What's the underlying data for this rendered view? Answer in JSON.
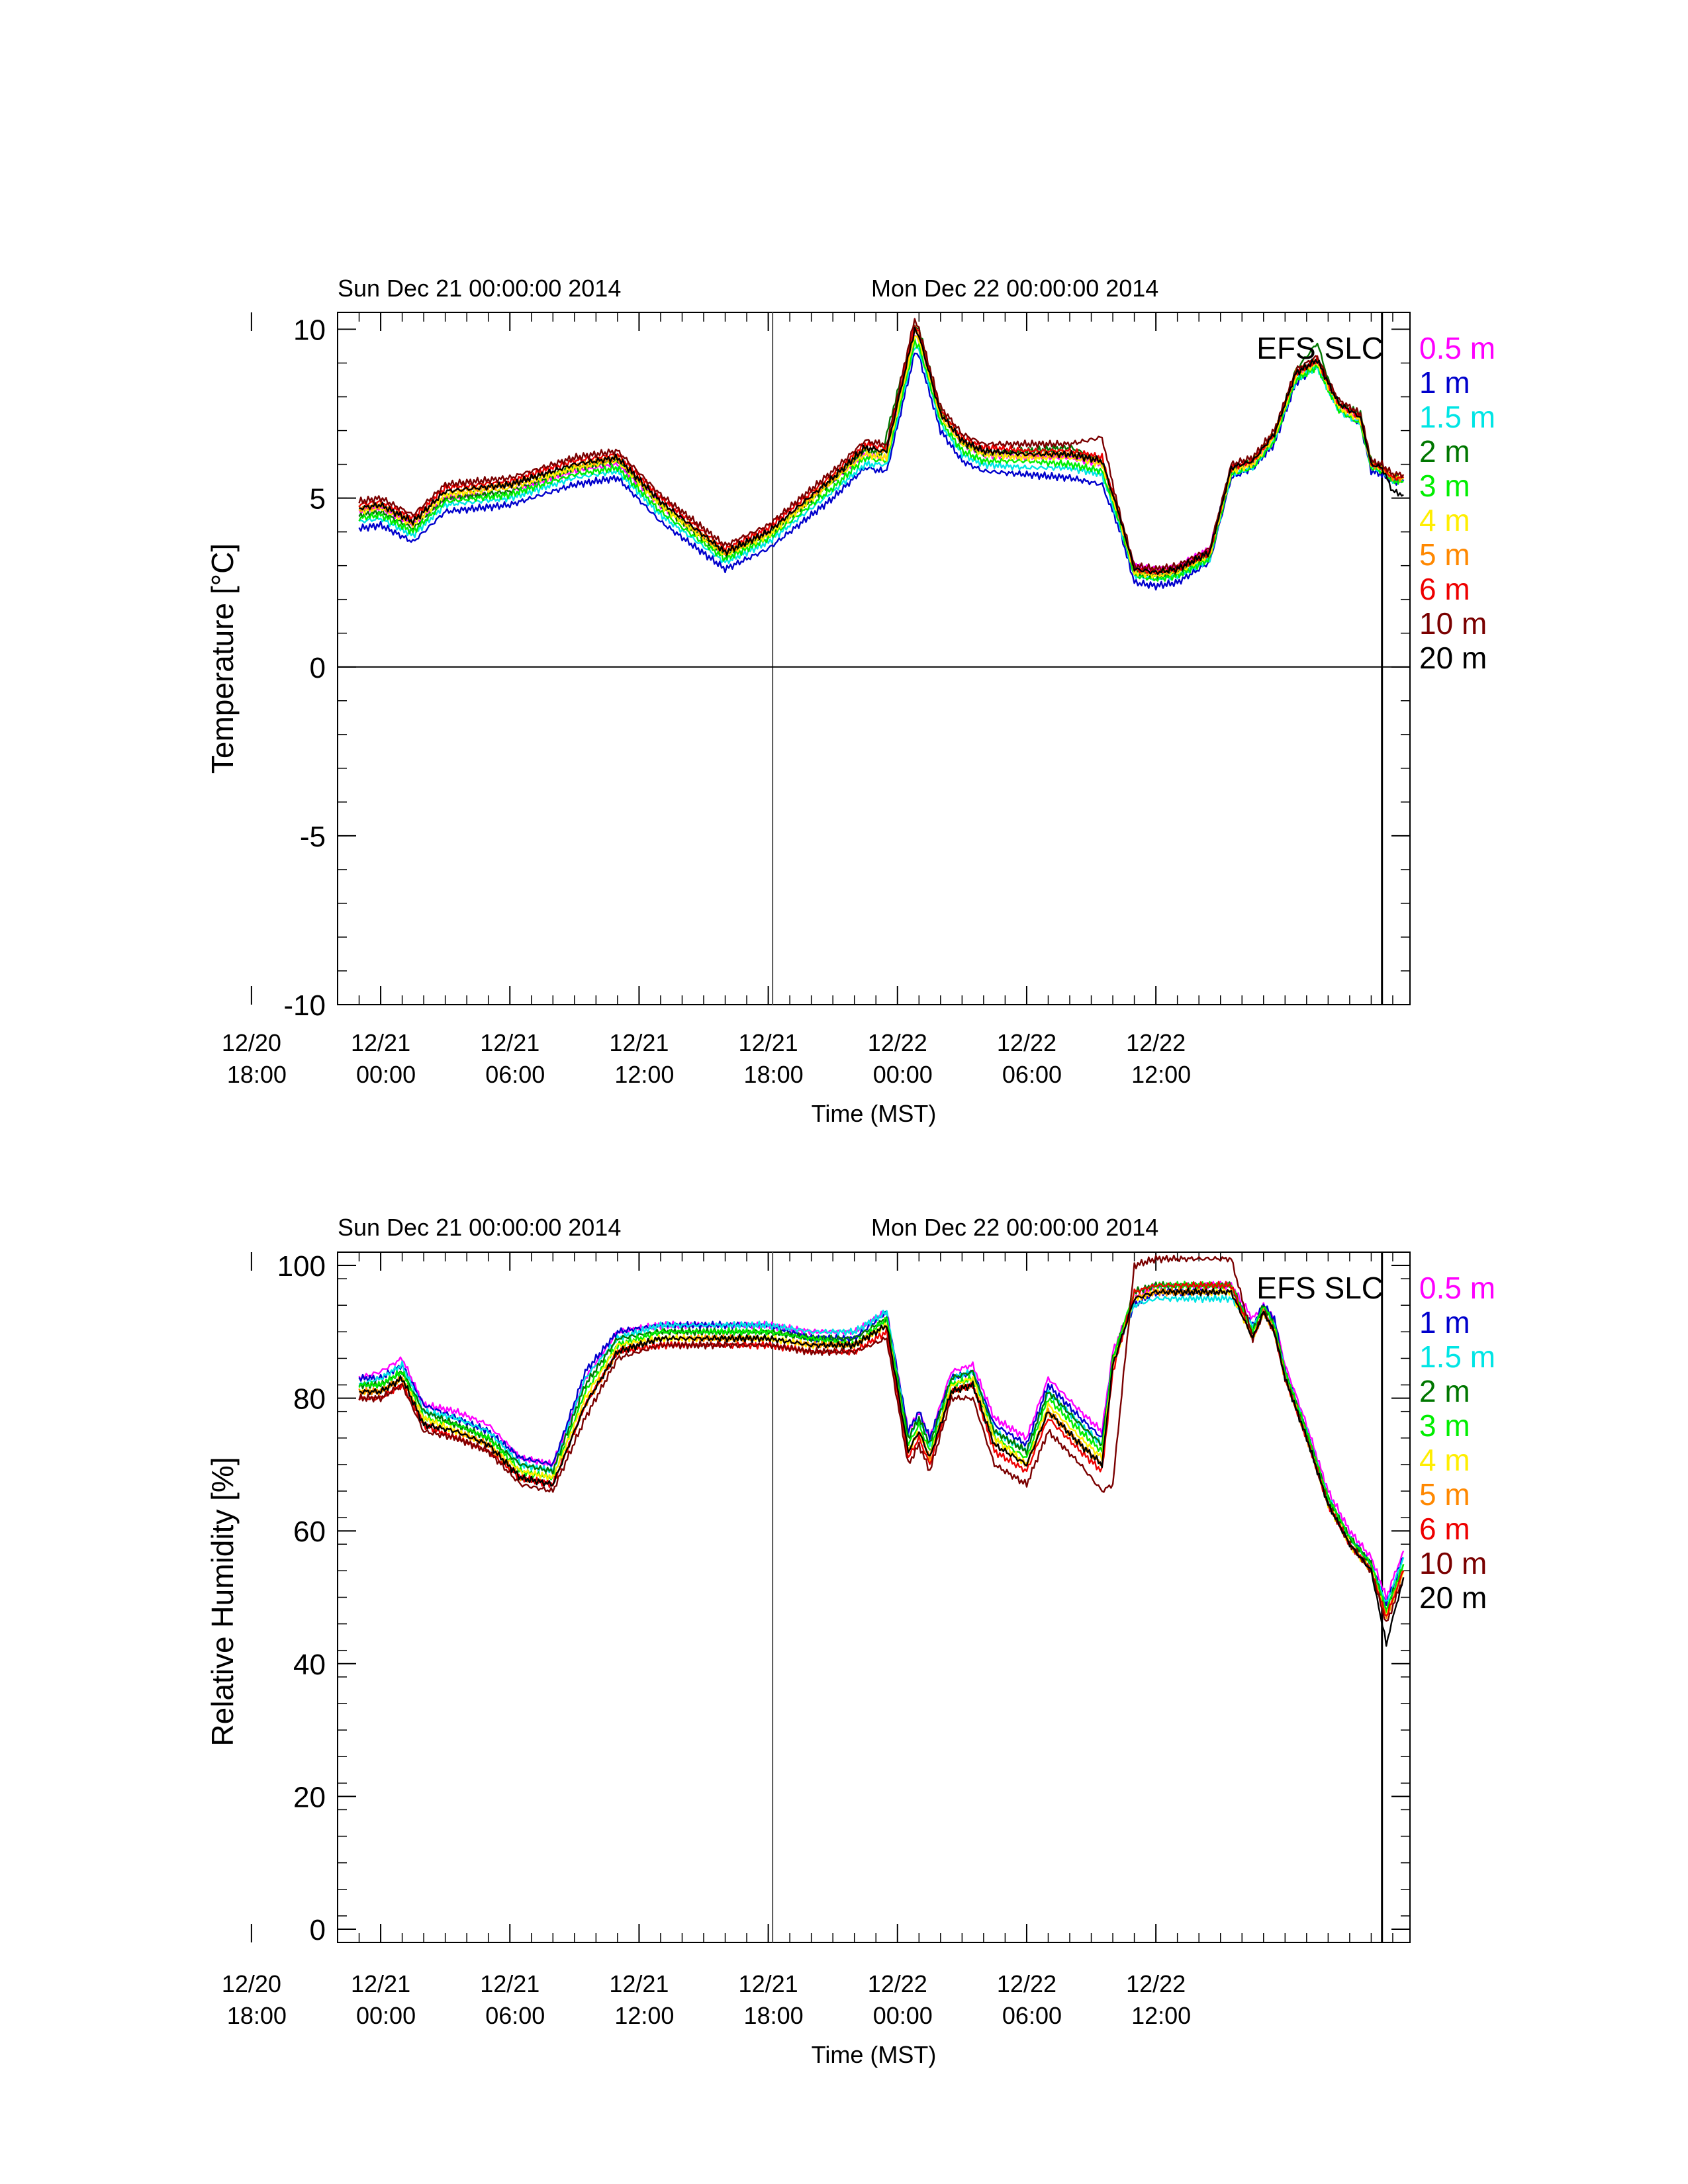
{
  "chart_data": [
    {
      "type": "line",
      "site_label": "EFS SLC",
      "ylabel": "Temperature [°C]",
      "xlabel": "Time (MST)",
      "ylim": [
        -10,
        10.5
      ],
      "yticks": [
        -10,
        -5,
        0,
        5,
        10
      ],
      "reference_line_y": 0,
      "date_labels": [
        "Sun Dec 21 00:00:00 2014",
        "Mon Dec 22 00:00:00 2014"
      ],
      "xticks": [
        {
          "top": "12/20",
          "bottom": "18:00"
        },
        {
          "top": "12/21",
          "bottom": "00:00"
        },
        {
          "top": "12/21",
          "bottom": "06:00"
        },
        {
          "top": "12/21",
          "bottom": "12:00"
        },
        {
          "top": "12/21",
          "bottom": "18:00"
        },
        {
          "top": "12/22",
          "bottom": "00:00"
        },
        {
          "top": "12/22",
          "bottom": "06:00"
        },
        {
          "top": "12/22",
          "bottom": "12:00"
        }
      ],
      "x_hours": [
        -1,
        0,
        1.5,
        3,
        6,
        9,
        11,
        13,
        16,
        18,
        21,
        22.5,
        23.3,
        23.5,
        24.8,
        25,
        26,
        27,
        28,
        30,
        32,
        33.5,
        34.3,
        35,
        36,
        37,
        38.5,
        39.5,
        40.5,
        41.5,
        42.5,
        43.5,
        44,
        44.5,
        45.5,
        46,
        46.5,
        47,
        47.5
      ],
      "series": [
        {
          "name": "0.5 m",
          "color": "#ff00ff",
          "values": [
            4.6,
            4.7,
            4.2,
            5.0,
            5.2,
            5.8,
            6.0,
            4.8,
            3.4,
            4.0,
            5.5,
            6.3,
            6.2,
            6.2,
            9.8,
            9.7,
            7.5,
            6.6,
            6.3,
            6.2,
            6.2,
            6.0,
            4.4,
            3.0,
            2.9,
            3.0,
            3.5,
            5.8,
            6.0,
            6.8,
            8.6,
            9.0,
            8.3,
            7.7,
            7.3,
            6.0,
            5.9,
            5.6,
            5.6
          ]
        },
        {
          "name": "1 m",
          "color": "#0000cc",
          "values": [
            4.1,
            4.2,
            3.7,
            4.6,
            4.8,
            5.4,
            5.6,
            4.3,
            2.9,
            3.5,
            5.0,
            5.9,
            5.8,
            5.8,
            9.3,
            9.2,
            7.0,
            6.1,
            5.8,
            5.7,
            5.6,
            5.4,
            4.1,
            2.5,
            2.4,
            2.5,
            3.1,
            5.6,
            5.9,
            6.6,
            8.4,
            8.9,
            8.2,
            7.6,
            7.2,
            5.8,
            5.7,
            5.5,
            5.5
          ]
        },
        {
          "name": "1.5 m",
          "color": "#00e5e5",
          "values": [
            4.3,
            4.4,
            3.9,
            4.8,
            5.0,
            5.6,
            5.8,
            4.5,
            3.1,
            3.7,
            5.2,
            6.0,
            6.0,
            6.0,
            9.5,
            9.4,
            7.2,
            6.3,
            6.0,
            5.9,
            5.9,
            5.7,
            4.2,
            2.7,
            2.6,
            2.7,
            3.2,
            5.7,
            5.9,
            6.7,
            8.5,
            8.9,
            8.2,
            7.6,
            7.2,
            5.9,
            5.8,
            5.5,
            5.5
          ]
        },
        {
          "name": "2 m",
          "color": "#007700",
          "values": [
            4.5,
            4.6,
            4.1,
            5.0,
            5.2,
            5.9,
            6.1,
            4.8,
            3.3,
            3.9,
            5.5,
            6.4,
            6.3,
            6.9,
            10.1,
            10.0,
            7.6,
            6.6,
            6.3,
            6.4,
            6.5,
            6.1,
            4.4,
            2.8,
            2.7,
            2.8,
            3.3,
            5.8,
            6.1,
            6.9,
            8.8,
            9.6,
            8.5,
            7.8,
            7.5,
            6.1,
            5.9,
            5.6,
            5.6
          ]
        },
        {
          "name": "3 m",
          "color": "#00ee00",
          "values": [
            4.4,
            4.5,
            4.0,
            4.9,
            5.1,
            5.7,
            5.9,
            4.6,
            3.2,
            3.8,
            5.3,
            6.2,
            6.1,
            6.1,
            9.6,
            9.5,
            7.3,
            6.4,
            6.1,
            6.1,
            6.0,
            5.8,
            4.3,
            2.7,
            2.6,
            2.7,
            3.2,
            5.7,
            5.9,
            6.7,
            8.5,
            8.9,
            8.2,
            7.6,
            7.2,
            5.9,
            5.8,
            5.5,
            5.5
          ]
        },
        {
          "name": "4 m",
          "color": "#ffee00",
          "values": [
            4.6,
            4.7,
            4.2,
            5.1,
            5.3,
            5.9,
            6.1,
            4.8,
            3.3,
            3.9,
            5.5,
            6.3,
            6.2,
            6.2,
            9.8,
            9.7,
            7.4,
            6.6,
            6.3,
            6.2,
            6.2,
            6.0,
            4.4,
            2.8,
            2.7,
            2.8,
            3.3,
            5.8,
            6.0,
            6.8,
            8.6,
            9.0,
            8.3,
            7.7,
            7.3,
            6.0,
            5.9,
            5.6,
            5.6
          ]
        },
        {
          "name": "5 m",
          "color": "#ff8800",
          "values": [
            4.7,
            4.8,
            4.3,
            5.2,
            5.4,
            6.0,
            6.2,
            4.9,
            3.4,
            4.0,
            5.6,
            6.5,
            6.4,
            6.4,
            10.0,
            9.8,
            7.5,
            6.7,
            6.4,
            6.3,
            6.3,
            6.1,
            4.5,
            2.9,
            2.8,
            2.9,
            3.4,
            5.9,
            6.1,
            6.9,
            8.7,
            9.1,
            8.4,
            7.8,
            7.4,
            6.0,
            5.9,
            5.6,
            5.6
          ]
        },
        {
          "name": "6 m",
          "color": "#ee0000",
          "values": [
            4.8,
            4.9,
            4.4,
            5.3,
            5.5,
            6.1,
            6.3,
            5.0,
            3.5,
            4.1,
            5.7,
            6.6,
            6.5,
            6.5,
            10.1,
            9.9,
            7.6,
            6.8,
            6.5,
            6.4,
            6.4,
            6.2,
            4.5,
            2.9,
            2.8,
            2.9,
            3.4,
            5.9,
            6.1,
            6.9,
            8.7,
            9.1,
            8.4,
            7.8,
            7.4,
            6.0,
            5.9,
            5.6,
            5.6
          ]
        },
        {
          "name": "10 m",
          "color": "#7a0000",
          "values": [
            4.9,
            5.0,
            4.5,
            5.4,
            5.6,
            6.2,
            6.4,
            5.1,
            3.6,
            4.2,
            5.8,
            6.7,
            6.6,
            6.6,
            10.3,
            10.0,
            7.7,
            6.9,
            6.6,
            6.6,
            6.6,
            6.8,
            4.6,
            3.0,
            2.9,
            3.0,
            3.5,
            6.0,
            6.2,
            7.0,
            8.8,
            9.2,
            8.5,
            7.9,
            7.5,
            6.1,
            6.0,
            5.7,
            5.7
          ]
        },
        {
          "name": "20 m",
          "color": "#000000",
          "values": [
            4.7,
            4.8,
            4.3,
            5.2,
            5.4,
            6.0,
            6.2,
            4.9,
            3.4,
            4.0,
            5.6,
            6.5,
            6.4,
            6.4,
            10.0,
            9.8,
            7.5,
            6.7,
            6.4,
            6.3,
            6.3,
            6.1,
            4.5,
            2.9,
            2.8,
            2.9,
            3.4,
            5.9,
            6.1,
            6.9,
            8.7,
            9.1,
            8.4,
            7.8,
            7.4,
            6.0,
            5.9,
            5.2,
            5.1
          ]
        }
      ]
    },
    {
      "type": "line",
      "site_label": "EFS SLC",
      "ylabel": "Relative Humidity [%]",
      "xlabel": "Time (MST)",
      "ylim": [
        -2,
        102
      ],
      "yticks": [
        0,
        20,
        40,
        60,
        80,
        100
      ],
      "date_labels": [
        "Sun Dec 21 00:00:00 2014",
        "Mon Dec 22 00:00:00 2014"
      ],
      "xticks": [
        {
          "top": "12/20",
          "bottom": "18:00"
        },
        {
          "top": "12/21",
          "bottom": "00:00"
        },
        {
          "top": "12/21",
          "bottom": "06:00"
        },
        {
          "top": "12/21",
          "bottom": "12:00"
        },
        {
          "top": "12/21",
          "bottom": "18:00"
        },
        {
          "top": "12/22",
          "bottom": "00:00"
        },
        {
          "top": "12/22",
          "bottom": "06:00"
        },
        {
          "top": "12/22",
          "bottom": "12:00"
        }
      ],
      "x_hours": [
        -1,
        0,
        1,
        2,
        3.5,
        5,
        6.5,
        8,
        9.5,
        11,
        13,
        16,
        18,
        20,
        22,
        23.5,
        24.5,
        25,
        25.5,
        26.5,
        27.5,
        28.5,
        30,
        31,
        32.5,
        33.5,
        34,
        35,
        36,
        37,
        38,
        39.5,
        40.5,
        41,
        41.5,
        42,
        43,
        44,
        45,
        46,
        46.7,
        47.5
      ],
      "series": [
        {
          "name": "0.5 m",
          "color": "#ff00ff",
          "values": [
            83,
            84,
            86,
            79,
            78,
            76,
            71,
            70,
            83,
            90,
            91,
            91,
            91,
            90,
            90,
            93,
            75,
            78,
            74,
            84,
            85,
            77,
            74,
            83,
            78,
            75,
            87,
            95,
            97,
            97,
            97,
            97,
            92,
            94,
            92,
            85,
            76,
            66,
            60,
            56,
            50,
            57
          ]
        },
        {
          "name": "1 m",
          "color": "#0000cc",
          "values": [
            83,
            83,
            85,
            79,
            77,
            75,
            71,
            70,
            84,
            90,
            91,
            91,
            91,
            89,
            89,
            93,
            75,
            78,
            74,
            83,
            84,
            76,
            73,
            82,
            77,
            74,
            86,
            94,
            96,
            96,
            96,
            96,
            91,
            94,
            92,
            84,
            75,
            65,
            59,
            55,
            49,
            56
          ]
        },
        {
          "name": "1.5 m",
          "color": "#00e5e5",
          "values": [
            82,
            83,
            85,
            78,
            77,
            75,
            70,
            69,
            83,
            89,
            91,
            91,
            91,
            90,
            90,
            93,
            74,
            77,
            73,
            83,
            84,
            75,
            72,
            81,
            76,
            73,
            86,
            94,
            95,
            95,
            95,
            95,
            91,
            93,
            91,
            84,
            75,
            65,
            59,
            55,
            49,
            56
          ]
        },
        {
          "name": "2 m",
          "color": "#007700",
          "values": [
            82,
            82,
            84,
            78,
            76,
            74,
            70,
            69,
            82,
            89,
            90,
            90,
            90,
            89,
            89,
            92,
            74,
            77,
            73,
            83,
            84,
            75,
            72,
            81,
            76,
            73,
            86,
            96,
            97,
            97,
            97,
            97,
            90,
            94,
            91,
            84,
            75,
            65,
            59,
            55,
            48,
            55
          ]
        },
        {
          "name": "3 m",
          "color": "#00ee00",
          "values": [
            82,
            82,
            84,
            77,
            76,
            74,
            69,
            68,
            81,
            88,
            90,
            90,
            90,
            89,
            88,
            92,
            73,
            76,
            72,
            82,
            83,
            74,
            71,
            80,
            75,
            72,
            86,
            96,
            97,
            97,
            97,
            97,
            90,
            94,
            91,
            84,
            75,
            65,
            59,
            55,
            48,
            55
          ]
        },
        {
          "name": "4 m",
          "color": "#ffee00",
          "values": [
            81,
            81,
            83,
            77,
            75,
            73,
            69,
            68,
            80,
            88,
            89,
            89,
            89,
            88,
            88,
            91,
            72,
            75,
            71,
            82,
            83,
            74,
            70,
            79,
            74,
            71,
            85,
            95,
            96,
            96,
            96,
            96,
            89,
            93,
            90,
            83,
            74,
            64,
            58,
            54,
            47,
            54
          ]
        },
        {
          "name": "5 m",
          "color": "#ff8800",
          "values": [
            81,
            81,
            83,
            76,
            75,
            73,
            68,
            67,
            79,
            87,
            89,
            89,
            89,
            88,
            88,
            91,
            72,
            75,
            71,
            81,
            82,
            73,
            70,
            78,
            73,
            70,
            85,
            95,
            96,
            96,
            96,
            96,
            89,
            93,
            90,
            83,
            74,
            64,
            58,
            54,
            47,
            54
          ]
        },
        {
          "name": "6 m",
          "color": "#ee0000",
          "values": [
            80,
            80,
            82,
            76,
            74,
            72,
            68,
            67,
            79,
            87,
            88,
            88,
            88,
            87,
            87,
            90,
            71,
            74,
            70,
            81,
            82,
            72,
            69,
            77,
            72,
            69,
            84,
            96,
            97,
            97,
            97,
            97,
            89,
            93,
            90,
            83,
            74,
            64,
            58,
            54,
            47,
            54
          ]
        },
        {
          "name": "10 m",
          "color": "#7a0000",
          "values": [
            80,
            80,
            82,
            75,
            74,
            72,
            67,
            66,
            77,
            86,
            88,
            88,
            88,
            87,
            87,
            89,
            70,
            73,
            69,
            80,
            80,
            70,
            67,
            75,
            70,
            66,
            67,
            100,
            101,
            101,
            101,
            101,
            89,
            93,
            90,
            83,
            74,
            64,
            58,
            54,
            46,
            53
          ]
        },
        {
          "name": "20 m",
          "color": "#000000",
          "values": [
            81,
            81,
            83,
            76,
            75,
            73,
            68,
            67,
            79,
            87,
            89,
            89,
            89,
            88,
            88,
            91,
            72,
            75,
            71,
            81,
            82,
            73,
            70,
            78,
            73,
            70,
            85,
            95,
            96,
            96,
            96,
            96,
            89,
            93,
            90,
            83,
            74,
            64,
            58,
            54,
            43,
            53
          ]
        }
      ]
    }
  ]
}
